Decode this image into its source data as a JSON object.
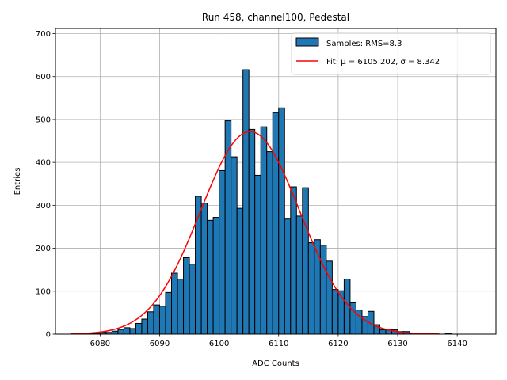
{
  "chart_data": {
    "type": "bar",
    "title": "Run 458, channel100, Pedestal",
    "xlabel": "ADC Counts",
    "ylabel": "Entries",
    "xlim": [
      6072.5,
      6146.5
    ],
    "ylim": [
      0,
      712
    ],
    "grid": true,
    "legend_position": "top-right",
    "x_ticks": [
      6080,
      6090,
      6100,
      6110,
      6120,
      6130,
      6140
    ],
    "y_ticks": [
      0,
      100,
      200,
      300,
      400,
      500,
      600,
      700
    ],
    "bin_width": 1,
    "bin_starts": [
      6078,
      6079,
      6080,
      6081,
      6082,
      6083,
      6084,
      6085,
      6086,
      6087,
      6088,
      6089,
      6090,
      6091,
      6092,
      6093,
      6094,
      6095,
      6096,
      6097,
      6098,
      6099,
      6100,
      6101,
      6102,
      6103,
      6104,
      6105,
      6106,
      6107,
      6108,
      6109,
      6110,
      6111,
      6112,
      6113,
      6114,
      6115,
      6116,
      6117,
      6118,
      6119,
      6120,
      6121,
      6122,
      6123,
      6124,
      6125,
      6126,
      6127,
      6128,
      6129,
      6130,
      6131,
      6132,
      6133,
      6134,
      6135,
      6136,
      6137,
      6138,
      6139,
      6140,
      6141,
      6142,
      6143
    ],
    "counts": [
      2,
      2,
      5,
      4,
      7,
      11,
      15,
      13,
      25,
      35,
      52,
      68,
      65,
      97,
      142,
      128,
      178,
      163,
      321,
      305,
      265,
      272,
      381,
      497,
      413,
      293,
      616,
      477,
      370,
      483,
      425,
      516,
      527,
      268,
      343,
      275,
      341,
      213,
      220,
      207,
      170,
      104,
      101,
      128,
      73,
      56,
      41,
      53,
      22,
      10,
      10,
      10,
      6,
      6,
      1,
      1,
      1,
      1,
      0,
      0,
      1,
      0,
      0,
      0,
      0,
      0
    ],
    "bar_color": "#1f77b4",
    "fit": {
      "mu": 6105.202,
      "sigma": 8.342,
      "amplitude": 472,
      "x_range": [
        6075,
        6137
      ],
      "color": "#ff0000"
    },
    "legend": [
      {
        "label": "Samples: RMS=8.3",
        "kind": "patch",
        "color": "#1f77b4"
      },
      {
        "label": "Fit: μ = 6105.202, σ = 8.342",
        "kind": "line",
        "color": "#ff0000"
      }
    ]
  }
}
